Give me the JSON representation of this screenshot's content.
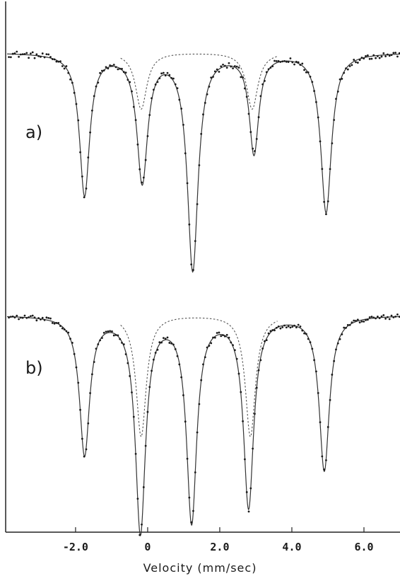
{
  "chart_data": {
    "type": "scatter",
    "xlabel": "Velocity (mm/sec)",
    "xlim": [
      -3.9,
      7.0
    ],
    "x_ticks": [
      -2.0,
      0,
      2.0,
      4.0,
      6.0
    ],
    "x_tick_labels": [
      "-2.0",
      "0",
      "2.0",
      "4.0",
      "6.0"
    ],
    "grid": false,
    "legend": "none",
    "colors": {
      "data_points": "#1a1a1a",
      "fit_line": "#333333",
      "subspectrum": "#555555"
    },
    "panels": [
      {
        "label": "a)",
        "baseline": 1.0,
        "fit_peaks": [
          {
            "center": -1.75,
            "depth": 0.4,
            "width": 0.34
          },
          {
            "center": -0.15,
            "depth": 0.36,
            "width": 0.36
          },
          {
            "center": 1.25,
            "depth": 0.61,
            "width": 0.36
          },
          {
            "center": 2.95,
            "depth": 0.28,
            "width": 0.32
          },
          {
            "center": 4.95,
            "depth": 0.45,
            "width": 0.36
          }
        ],
        "subspectrum_peaks": [
          {
            "center": -0.18,
            "depth": 0.16,
            "width": 0.38
          },
          {
            "center": 2.9,
            "depth": 0.16,
            "width": 0.38
          }
        ],
        "subspectrum_range": [
          -0.75,
          3.6
        ]
      },
      {
        "label": "b)",
        "baseline": 1.0,
        "fit_peaks": [
          {
            "center": -1.75,
            "depth": 0.5,
            "width": 0.34
          },
          {
            "center": -0.2,
            "depth": 0.78,
            "width": 0.34
          },
          {
            "center": 1.22,
            "depth": 0.74,
            "width": 0.34
          },
          {
            "center": 2.8,
            "depth": 0.69,
            "width": 0.34
          },
          {
            "center": 4.9,
            "depth": 0.56,
            "width": 0.34
          }
        ],
        "subspectrum_peaks": [
          {
            "center": -0.18,
            "depth": 0.44,
            "width": 0.34
          },
          {
            "center": 2.85,
            "depth": 0.44,
            "width": 0.34
          }
        ],
        "subspectrum_range": [
          -0.75,
          3.6
        ]
      }
    ]
  }
}
